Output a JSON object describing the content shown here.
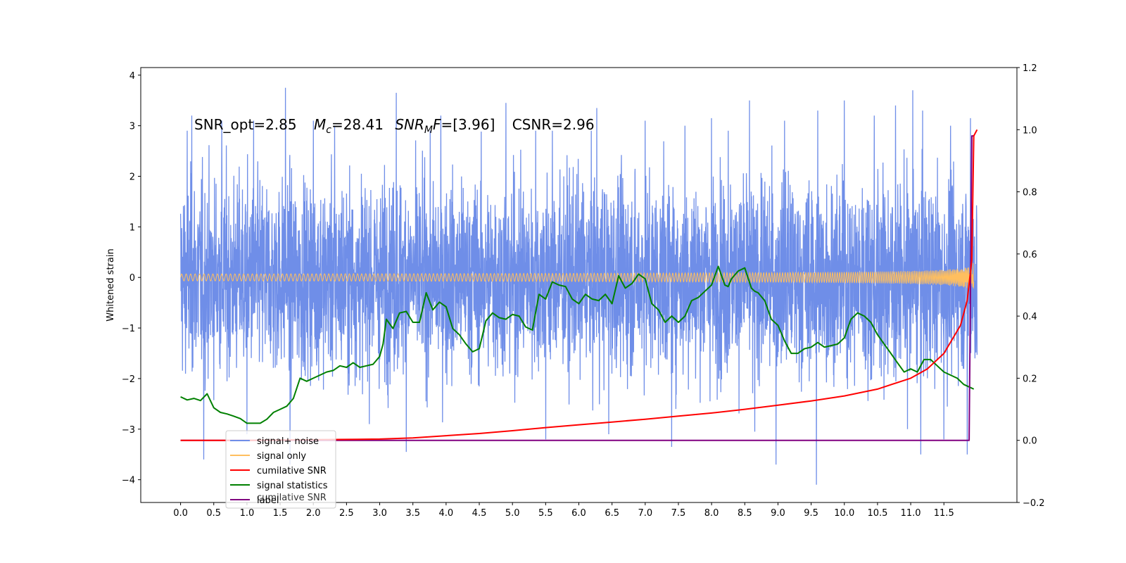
{
  "chart_data": {
    "type": "line",
    "ylabel": "Whitened strain",
    "annotation": {
      "snr_opt": "SNR_opt=2.85",
      "mc_sym": "M",
      "mc_sub": "c",
      "mc_val": "=28.41",
      "snrmf_sym": "SNR",
      "snrmf_sub": "M",
      "snrmf_tail": "F",
      "snrmf_val": "=[3.96]",
      "csnr": "CSNR=2.96"
    },
    "x_ticks": [
      "0.0",
      "0.5",
      "1.0",
      "1.5",
      "2.0",
      "2.5",
      "3.0",
      "3.5",
      "4.0",
      "4.5",
      "5.0",
      "5.5",
      "6.0",
      "6.5",
      "7.0",
      "7.5",
      "8.0",
      "8.5",
      "9.0",
      "9.5",
      "10.0",
      "10.5",
      "11.0",
      "11.5"
    ],
    "y_left_ticks": [
      "−4",
      "−3",
      "−2",
      "−1",
      "0",
      "1",
      "2",
      "3",
      "4"
    ],
    "y_right_ticks": [
      "−0.2",
      "0.0",
      "0.2",
      "0.4",
      "0.6",
      "0.8",
      "1.0",
      "1.2"
    ],
    "xlim": [
      -0.6,
      12.6
    ],
    "ylim_left": [
      -4.45,
      4.15
    ],
    "ylim_right": [
      -0.2,
      1.2
    ],
    "legend": {
      "placement": "lower-left",
      "entries": [
        {
          "label": "signal+ noise",
          "color": "#6f8ee8"
        },
        {
          "label": "signal only",
          "color": "#ffbf5f"
        },
        {
          "label": "cumilative SNR",
          "color": "#ff0000"
        },
        {
          "label": "signal statistics",
          "color": "#008000"
        },
        {
          "label": "label",
          "color": "#800080"
        }
      ],
      "hidden_entry": "cumilative SNR"
    },
    "series": [
      {
        "name": "signal+ noise",
        "axis": "left",
        "color": "#6f8ee8",
        "display": "dense noise band between about -2.5 and 2.5",
        "x_range": [
          0.0,
          12.0
        ],
        "extremes": [
          [
            0.1,
            2.9
          ],
          [
            0.17,
            3.2
          ],
          [
            0.35,
            -3.6
          ],
          [
            0.62,
            3.1
          ],
          [
            1.0,
            -3.1
          ],
          [
            1.1,
            3.1
          ],
          [
            1.58,
            3.75
          ],
          [
            1.65,
            -3.7
          ],
          [
            2.32,
            3.0
          ],
          [
            2.0,
            3.1
          ],
          [
            3.25,
            3.65
          ],
          [
            3.4,
            -3.45
          ],
          [
            3.92,
            3.2
          ],
          [
            4.9,
            3.45
          ],
          [
            5.35,
            2.9
          ],
          [
            5.5,
            -3.2
          ],
          [
            5.6,
            2.9
          ],
          [
            6.27,
            3.35
          ],
          [
            6.45,
            -3.1
          ],
          [
            7.0,
            3.1
          ],
          [
            7.4,
            -3.35
          ],
          [
            7.6,
            3.0
          ],
          [
            8.0,
            3.15
          ],
          [
            8.25,
            2.9
          ],
          [
            8.57,
            3.5
          ],
          [
            8.65,
            -3.05
          ],
          [
            8.97,
            -3.7
          ],
          [
            9.1,
            3.1
          ],
          [
            9.58,
            -4.1
          ],
          [
            9.6,
            3.3
          ],
          [
            10.0,
            3.5
          ],
          [
            10.45,
            3.2
          ],
          [
            10.77,
            3.4
          ],
          [
            10.95,
            -3.0
          ],
          [
            11.03,
            3.7
          ],
          [
            11.15,
            -3.5
          ],
          [
            11.18,
            3.3
          ],
          [
            11.5,
            -3.2
          ],
          [
            11.6,
            3.0
          ],
          [
            11.85,
            -3.5
          ],
          [
            11.9,
            -3.7
          ],
          [
            11.9,
            3.15
          ]
        ]
      },
      {
        "name": "signal only",
        "axis": "left",
        "color": "#ffbf5f",
        "display": "flat at 0, oscillation growing toward merger near 11.9",
        "peak_amplitude": 0.65
      },
      {
        "name": "cumilative SNR",
        "axis": "right",
        "color": "#ff0000",
        "x": [
          0.0,
          1.0,
          2.0,
          3.0,
          3.5,
          4.0,
          4.5,
          5.0,
          5.5,
          6.0,
          6.5,
          7.0,
          7.5,
          8.0,
          8.5,
          9.0,
          9.5,
          10.0,
          10.5,
          11.0,
          11.25,
          11.5,
          11.75,
          11.85,
          11.92,
          11.95,
          12.0
        ],
        "y": [
          0.0,
          0.0,
          0.002,
          0.004,
          0.008,
          0.015,
          0.022,
          0.031,
          0.041,
          0.05,
          0.059,
          0.068,
          0.078,
          0.088,
          0.1,
          0.113,
          0.127,
          0.143,
          0.165,
          0.2,
          0.23,
          0.28,
          0.37,
          0.45,
          0.58,
          0.98,
          1.0
        ]
      },
      {
        "name": "signal statistics",
        "axis": "right",
        "color": "#008000",
        "x": [
          0.0,
          0.1,
          0.2,
          0.3,
          0.4,
          0.5,
          0.6,
          0.7,
          0.8,
          0.9,
          1.0,
          1.1,
          1.2,
          1.3,
          1.4,
          1.5,
          1.6,
          1.7,
          1.8,
          1.9,
          2.0,
          2.1,
          2.2,
          2.3,
          2.4,
          2.5,
          2.6,
          2.7,
          2.8,
          2.9,
          3.0,
          3.05,
          3.1,
          3.2,
          3.3,
          3.4,
          3.5,
          3.6,
          3.7,
          3.8,
          3.9,
          4.0,
          4.1,
          4.2,
          4.3,
          4.4,
          4.5,
          4.6,
          4.7,
          4.8,
          4.9,
          5.0,
          5.1,
          5.2,
          5.3,
          5.4,
          5.5,
          5.6,
          5.7,
          5.8,
          5.9,
          6.0,
          6.1,
          6.2,
          6.3,
          6.4,
          6.5,
          6.6,
          6.7,
          6.8,
          6.9,
          7.0,
          7.1,
          7.2,
          7.3,
          7.4,
          7.5,
          7.6,
          7.7,
          7.8,
          7.9,
          8.0,
          8.1,
          8.2,
          8.25,
          8.3,
          8.4,
          8.5,
          8.6,
          8.65,
          8.7,
          8.8,
          8.9,
          9.0,
          9.1,
          9.2,
          9.3,
          9.4,
          9.5,
          9.6,
          9.7,
          9.8,
          9.9,
          10.0,
          10.1,
          10.2,
          10.3,
          10.4,
          10.5,
          10.6,
          10.7,
          10.8,
          10.9,
          11.0,
          11.1,
          11.2,
          11.3,
          11.4,
          11.5,
          11.6,
          11.7,
          11.8,
          11.9,
          11.95
        ],
        "y": [
          0.14,
          0.13,
          0.135,
          0.128,
          0.15,
          0.105,
          0.09,
          0.085,
          0.078,
          0.07,
          0.055,
          0.055,
          0.055,
          0.068,
          0.09,
          0.1,
          0.11,
          0.135,
          0.2,
          0.19,
          0.2,
          0.21,
          0.22,
          0.225,
          0.24,
          0.235,
          0.25,
          0.235,
          0.24,
          0.245,
          0.27,
          0.31,
          0.39,
          0.36,
          0.41,
          0.415,
          0.38,
          0.38,
          0.475,
          0.42,
          0.445,
          0.43,
          0.36,
          0.34,
          0.31,
          0.285,
          0.295,
          0.385,
          0.41,
          0.395,
          0.39,
          0.405,
          0.4,
          0.365,
          0.355,
          0.47,
          0.455,
          0.51,
          0.5,
          0.495,
          0.455,
          0.44,
          0.47,
          0.455,
          0.45,
          0.47,
          0.44,
          0.53,
          0.49,
          0.505,
          0.535,
          0.52,
          0.44,
          0.42,
          0.38,
          0.4,
          0.38,
          0.4,
          0.45,
          0.46,
          0.48,
          0.5,
          0.56,
          0.5,
          0.495,
          0.52,
          0.545,
          0.555,
          0.49,
          0.48,
          0.475,
          0.45,
          0.39,
          0.37,
          0.32,
          0.28,
          0.28,
          0.295,
          0.3,
          0.315,
          0.3,
          0.305,
          0.31,
          0.33,
          0.39,
          0.41,
          0.4,
          0.38,
          0.34,
          0.31,
          0.28,
          0.25,
          0.22,
          0.23,
          0.22,
          0.26,
          0.26,
          0.24,
          0.22,
          0.21,
          0.2,
          0.18,
          0.17,
          0.165
        ]
      },
      {
        "name": "label",
        "axis": "right",
        "color": "#800080",
        "x": [
          0.0,
          11.88,
          11.92,
          11.95
        ],
        "y": [
          0.0,
          0.0,
          0.98,
          0.98
        ]
      }
    ]
  }
}
